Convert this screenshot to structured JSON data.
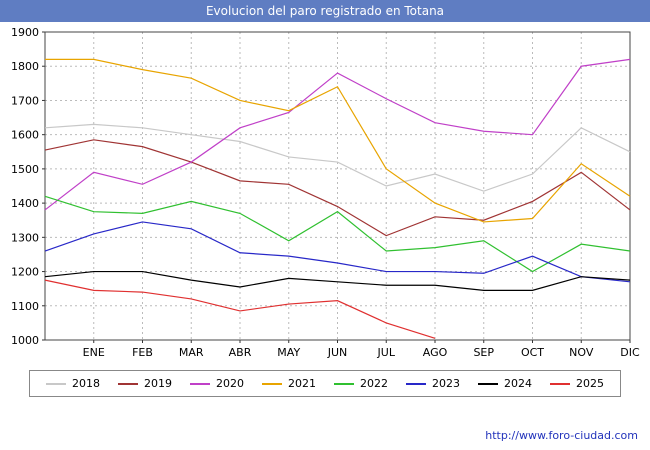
{
  "header": {
    "title": "Evolucion del paro registrado en Totana"
  },
  "footer": {
    "url": "http://www.foro-ciudad.com"
  },
  "chart_data": {
    "type": "line",
    "title": "Evolucion del paro registrado en Totana",
    "xlabel": "",
    "ylabel": "",
    "ylim": [
      1000,
      1900
    ],
    "y_tick_step": 100,
    "grid": true,
    "grid_style": "dashed",
    "legend_position": "bottom",
    "x_labels": [
      "ENE",
      "FEB",
      "MAR",
      "ABR",
      "MAY",
      "JUN",
      "JUL",
      "AGO",
      "SEP",
      "OCT",
      "NOV",
      "DIC"
    ],
    "x_axis_note": "first value of each series sits on the left axis (carry-over of previous December), followed by 12 monthly points",
    "series": [
      {
        "name": "2018",
        "color": "#c8c8c8",
        "values": [
          1620,
          1630,
          1620,
          1600,
          1580,
          1535,
          1520,
          1450,
          1485,
          1435,
          1485,
          1620,
          1550
        ]
      },
      {
        "name": "2019",
        "color": "#a03434",
        "values": [
          1555,
          1585,
          1565,
          1520,
          1465,
          1455,
          1390,
          1305,
          1360,
          1350,
          1405,
          1490,
          1380
        ]
      },
      {
        "name": "2020",
        "color": "#c040c8",
        "values": [
          1380,
          1490,
          1455,
          1520,
          1620,
          1665,
          1780,
          1705,
          1635,
          1610,
          1600,
          1800,
          1820
        ]
      },
      {
        "name": "2021",
        "color": "#e8a400",
        "values": [
          1820,
          1820,
          1790,
          1765,
          1700,
          1670,
          1740,
          1500,
          1400,
          1345,
          1355,
          1515,
          1420
        ]
      },
      {
        "name": "2022",
        "color": "#30c030",
        "values": [
          1420,
          1375,
          1370,
          1405,
          1370,
          1290,
          1375,
          1260,
          1270,
          1290,
          1200,
          1280,
          1260
        ]
      },
      {
        "name": "2023",
        "color": "#2828c8",
        "values": [
          1260,
          1310,
          1345,
          1325,
          1255,
          1245,
          1225,
          1200,
          1200,
          1195,
          1245,
          1185,
          1170
        ]
      },
      {
        "name": "2024",
        "color": "#000000",
        "values": [
          1185,
          1200,
          1200,
          1175,
          1155,
          1180,
          1170,
          1160,
          1160,
          1145,
          1145,
          1185,
          1175
        ]
      },
      {
        "name": "2025",
        "color": "#e03030",
        "values": [
          1175,
          1145,
          1140,
          1120,
          1085,
          1105,
          1115,
          1050,
          1005
        ]
      }
    ]
  }
}
